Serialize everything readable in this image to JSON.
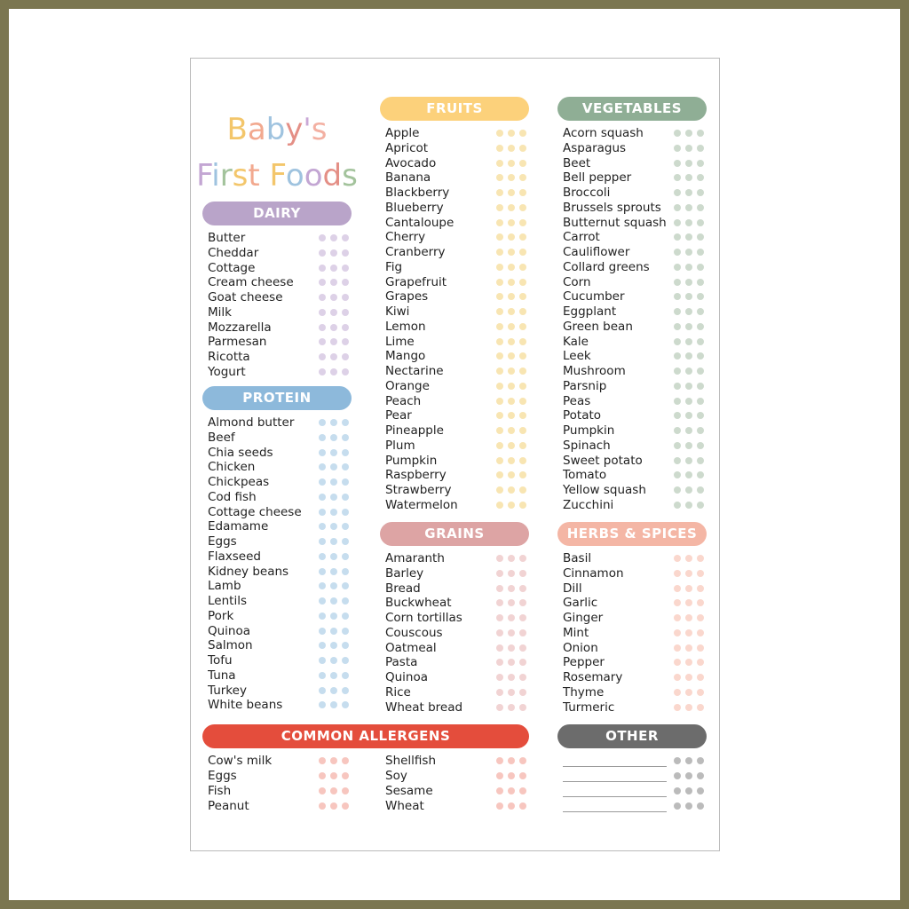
{
  "title": {
    "line1": "Baby's",
    "line2": "First Foods"
  },
  "sections": [
    {
      "title": "DAIRY",
      "items": [
        "Butter",
        "Cheddar",
        "Cottage",
        "Cream cheese",
        "Goat cheese",
        "Milk",
        "Mozzarella",
        "Parmesan",
        "Ricotta",
        "Yogurt"
      ]
    },
    {
      "title": "PROTEIN",
      "items": [
        "Almond butter",
        "Beef",
        "Chia seeds",
        "Chicken",
        "Chickpeas",
        "Cod fish",
        "Cottage cheese",
        "Edamame",
        "Eggs",
        "Flaxseed",
        "Kidney beans",
        "Lamb",
        "Lentils",
        "Pork",
        "Quinoa",
        "Salmon",
        "Tofu",
        "Tuna",
        "Turkey",
        "White beans"
      ]
    },
    {
      "title": "FRUITS",
      "items": [
        "Apple",
        "Apricot",
        "Avocado",
        "Banana",
        "Blackberry",
        "Blueberry",
        "Cantaloupe",
        "Cherry",
        "Cranberry",
        "Fig",
        "Grapefruit",
        "Grapes",
        "Kiwi",
        "Lemon",
        "Lime",
        "Mango",
        "Nectarine",
        "Orange",
        "Peach",
        "Pear",
        "Pineapple",
        "Plum",
        "Pumpkin",
        "Raspberry",
        "Strawberry",
        "Watermelon"
      ]
    },
    {
      "title": "VEGETABLES",
      "items": [
        "Acorn squash",
        "Asparagus",
        "Beet",
        "Bell pepper",
        "Broccoli",
        "Brussels sprouts",
        "Butternut squash",
        "Carrot",
        "Cauliflower",
        "Collard greens",
        "Corn",
        "Cucumber",
        "Eggplant",
        "Green bean",
        "Kale",
        "Leek",
        "Mushroom",
        "Parsnip",
        "Peas",
        "Potato",
        "Pumpkin",
        "Spinach",
        "Sweet potato",
        "Tomato",
        "Yellow squash",
        "Zucchini"
      ]
    },
    {
      "title": "GRAINS",
      "items": [
        "Amaranth",
        "Barley",
        "Bread",
        "Buckwheat",
        "Corn tortillas",
        "Couscous",
        "Oatmeal",
        "Pasta",
        "Quinoa",
        "Rice",
        "Wheat bread"
      ]
    },
    {
      "title": "HERBS & SPICES",
      "items": [
        "Basil",
        "Cinnamon",
        "Dill",
        "Garlic",
        "Ginger",
        "Mint",
        "Onion",
        "Pepper",
        "Rosemary",
        "Thyme",
        "Turmeric"
      ]
    },
    {
      "title": "COMMON ALLERGENS",
      "items": [
        "Cow's milk",
        "Eggs",
        "Fish",
        "Peanut",
        "Shellfish",
        "Soy",
        "Sesame",
        "Wheat"
      ]
    },
    {
      "title": "OTHER",
      "items": []
    }
  ]
}
